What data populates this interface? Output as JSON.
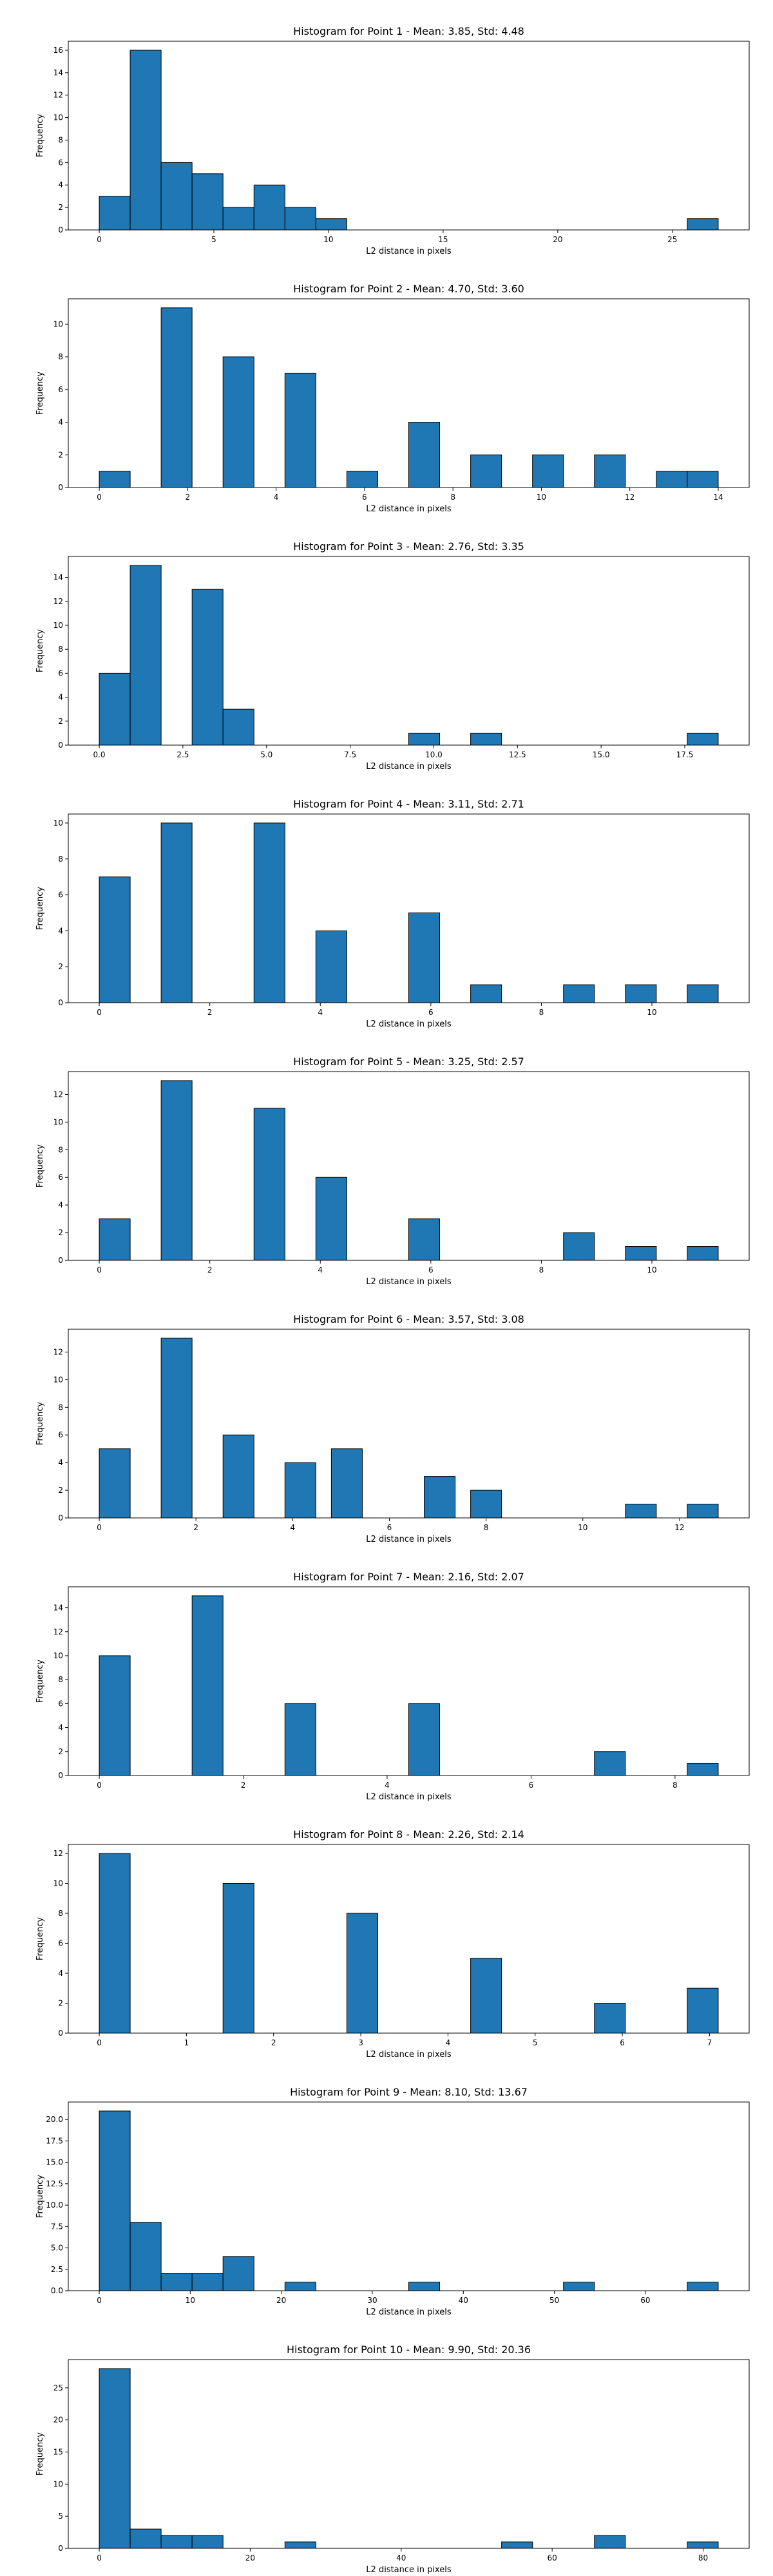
{
  "colors": {
    "bar_fill": "#1f77b4",
    "bar_edge": "#000000",
    "axes": "#000000",
    "background": "#ffffff"
  },
  "chart_data": [
    {
      "type": "bar",
      "title": "Histogram for Point 1 - Mean: 3.85, Std: 4.48",
      "xlabel": "L2 distance in pixels",
      "ylabel": "Frequency",
      "xlim": [
        -1.35,
        28.35
      ],
      "ylim": [
        0,
        16.8
      ],
      "xticks": [
        0,
        5,
        10,
        15,
        20,
        25
      ],
      "yticks": [
        0,
        2,
        4,
        6,
        8,
        10,
        12,
        14,
        16
      ],
      "grid": false,
      "bins": [
        {
          "x0": 0.0,
          "x1": 1.35,
          "value": 3
        },
        {
          "x0": 1.35,
          "x1": 2.7,
          "value": 16
        },
        {
          "x0": 2.7,
          "x1": 4.05,
          "value": 6
        },
        {
          "x0": 4.05,
          "x1": 5.4,
          "value": 5
        },
        {
          "x0": 5.4,
          "x1": 6.75,
          "value": 2
        },
        {
          "x0": 6.75,
          "x1": 8.1,
          "value": 4
        },
        {
          "x0": 8.1,
          "x1": 9.45,
          "value": 2
        },
        {
          "x0": 9.45,
          "x1": 10.8,
          "value": 1
        },
        {
          "x0": 25.65,
          "x1": 27.0,
          "value": 1
        }
      ]
    },
    {
      "type": "bar",
      "title": "Histogram for Point 2 - Mean: 4.70, Std: 3.60",
      "xlabel": "L2 distance in pixels",
      "ylabel": "Frequency",
      "xlim": [
        -0.7,
        14.7
      ],
      "ylim": [
        0,
        11.55
      ],
      "xticks": [
        0,
        2,
        4,
        6,
        8,
        10,
        12,
        14
      ],
      "yticks": [
        0,
        2,
        4,
        6,
        8,
        10
      ],
      "grid": false,
      "bins": [
        {
          "x0": 0.0,
          "x1": 0.7,
          "value": 1
        },
        {
          "x0": 1.4,
          "x1": 2.1,
          "value": 11
        },
        {
          "x0": 2.8,
          "x1": 3.5,
          "value": 8
        },
        {
          "x0": 4.2,
          "x1": 4.9,
          "value": 7
        },
        {
          "x0": 5.6,
          "x1": 6.3,
          "value": 1
        },
        {
          "x0": 7.0,
          "x1": 7.7,
          "value": 4
        },
        {
          "x0": 8.4,
          "x1": 9.1,
          "value": 2
        },
        {
          "x0": 9.8,
          "x1": 10.5,
          "value": 2
        },
        {
          "x0": 11.2,
          "x1": 11.9,
          "value": 2
        },
        {
          "x0": 12.6,
          "x1": 13.3,
          "value": 1
        },
        {
          "x0": 13.3,
          "x1": 14.0,
          "value": 1
        }
      ]
    },
    {
      "type": "bar",
      "title": "Histogram for Point 3 - Mean: 2.76, Std: 3.35",
      "xlabel": "L2 distance in pixels",
      "ylabel": "Frequency",
      "xlim": [
        -0.925,
        19.425
      ],
      "ylim": [
        0,
        15.75
      ],
      "xticks": [
        0.0,
        2.5,
        5.0,
        7.5,
        10.0,
        12.5,
        15.0,
        17.5
      ],
      "xtick_labels": [
        "0.0",
        "2.5",
        "5.0",
        "7.5",
        "10.0",
        "12.5",
        "15.0",
        "17.5"
      ],
      "yticks": [
        0,
        2,
        4,
        6,
        8,
        10,
        12,
        14
      ],
      "grid": false,
      "bins": [
        {
          "x0": 0.0,
          "x1": 0.925,
          "value": 6
        },
        {
          "x0": 0.925,
          "x1": 1.85,
          "value": 15
        },
        {
          "x0": 2.775,
          "x1": 3.7,
          "value": 13
        },
        {
          "x0": 3.7,
          "x1": 4.625,
          "value": 3
        },
        {
          "x0": 9.25,
          "x1": 10.175,
          "value": 1
        },
        {
          "x0": 11.1,
          "x1": 12.025,
          "value": 1
        },
        {
          "x0": 17.575,
          "x1": 18.5,
          "value": 1
        }
      ]
    },
    {
      "type": "bar",
      "title": "Histogram for Point 4 - Mean: 3.11, Std: 2.71",
      "xlabel": "L2 distance in pixels",
      "ylabel": "Frequency",
      "xlim": [
        -0.56,
        11.76
      ],
      "ylim": [
        0,
        10.5
      ],
      "xticks": [
        0,
        2,
        4,
        6,
        8,
        10
      ],
      "yticks": [
        0,
        2,
        4,
        6,
        8,
        10
      ],
      "grid": false,
      "bins": [
        {
          "x0": 0.0,
          "x1": 0.56,
          "value": 7
        },
        {
          "x0": 1.12,
          "x1": 1.68,
          "value": 10
        },
        {
          "x0": 2.8,
          "x1": 3.36,
          "value": 10
        },
        {
          "x0": 3.92,
          "x1": 4.48,
          "value": 4
        },
        {
          "x0": 5.6,
          "x1": 6.16,
          "value": 5
        },
        {
          "x0": 6.72,
          "x1": 7.28,
          "value": 1
        },
        {
          "x0": 8.4,
          "x1": 8.96,
          "value": 1
        },
        {
          "x0": 9.52,
          "x1": 10.08,
          "value": 1
        },
        {
          "x0": 10.64,
          "x1": 11.2,
          "value": 1
        }
      ]
    },
    {
      "type": "bar",
      "title": "Histogram for Point 5 - Mean: 3.25, Std: 2.57",
      "xlabel": "L2 distance in pixels",
      "ylabel": "Frequency",
      "xlim": [
        -0.56,
        11.76
      ],
      "ylim": [
        0,
        13.65
      ],
      "xticks": [
        0,
        2,
        4,
        6,
        8,
        10
      ],
      "yticks": [
        0,
        2,
        4,
        6,
        8,
        10,
        12
      ],
      "grid": false,
      "bins": [
        {
          "x0": 0.0,
          "x1": 0.56,
          "value": 3
        },
        {
          "x0": 1.12,
          "x1": 1.68,
          "value": 13
        },
        {
          "x0": 2.8,
          "x1": 3.36,
          "value": 11
        },
        {
          "x0": 3.92,
          "x1": 4.48,
          "value": 6
        },
        {
          "x0": 5.6,
          "x1": 6.16,
          "value": 3
        },
        {
          "x0": 8.4,
          "x1": 8.96,
          "value": 2
        },
        {
          "x0": 9.52,
          "x1": 10.08,
          "value": 1
        },
        {
          "x0": 10.64,
          "x1": 11.2,
          "value": 1
        }
      ]
    },
    {
      "type": "bar",
      "title": "Histogram for Point 6 - Mean: 3.57, Std: 3.08",
      "xlabel": "L2 distance in pixels",
      "ylabel": "Frequency",
      "xlim": [
        -0.64,
        13.44
      ],
      "ylim": [
        0,
        13.65
      ],
      "xticks": [
        0,
        2,
        4,
        6,
        8,
        10,
        12
      ],
      "yticks": [
        0,
        2,
        4,
        6,
        8,
        10,
        12
      ],
      "grid": false,
      "bins": [
        {
          "x0": 0.0,
          "x1": 0.64,
          "value": 5
        },
        {
          "x0": 1.28,
          "x1": 1.92,
          "value": 13
        },
        {
          "x0": 2.56,
          "x1": 3.2,
          "value": 6
        },
        {
          "x0": 3.84,
          "x1": 4.48,
          "value": 4
        },
        {
          "x0": 4.8,
          "x1": 5.44,
          "value": 5
        },
        {
          "x0": 6.72,
          "x1": 7.36,
          "value": 3
        },
        {
          "x0": 7.68,
          "x1": 8.32,
          "value": 2
        },
        {
          "x0": 10.88,
          "x1": 11.52,
          "value": 1
        },
        {
          "x0": 12.16,
          "x1": 12.8,
          "value": 1
        }
      ]
    },
    {
      "type": "bar",
      "title": "Histogram for Point 7 - Mean: 2.16, Std: 2.07",
      "xlabel": "L2 distance in pixels",
      "ylabel": "Frequency",
      "xlim": [
        -0.43,
        9.03
      ],
      "ylim": [
        0,
        15.75
      ],
      "xticks": [
        0,
        2,
        4,
        6,
        8
      ],
      "yticks": [
        0,
        2,
        4,
        6,
        8,
        10,
        12,
        14
      ],
      "grid": false,
      "bins": [
        {
          "x0": 0.0,
          "x1": 0.43,
          "value": 10
        },
        {
          "x0": 1.29,
          "x1": 1.72,
          "value": 15
        },
        {
          "x0": 2.58,
          "x1": 3.01,
          "value": 6
        },
        {
          "x0": 4.3,
          "x1": 4.73,
          "value": 6
        },
        {
          "x0": 6.88,
          "x1": 7.31,
          "value": 2
        },
        {
          "x0": 8.17,
          "x1": 8.6,
          "value": 1
        }
      ]
    },
    {
      "type": "bar",
      "title": "Histogram for Point 8 - Mean: 2.26, Std: 2.14",
      "xlabel": "L2 distance in pixels",
      "ylabel": "Frequency",
      "xlim": [
        -0.355,
        7.455
      ],
      "ylim": [
        0,
        12.6
      ],
      "xticks": [
        0,
        1,
        2,
        3,
        4,
        5,
        6,
        7
      ],
      "yticks": [
        0,
        2,
        4,
        6,
        8,
        10,
        12
      ],
      "grid": false,
      "bins": [
        {
          "x0": 0.0,
          "x1": 0.355,
          "value": 12
        },
        {
          "x0": 1.42,
          "x1": 1.775,
          "value": 10
        },
        {
          "x0": 2.84,
          "x1": 3.195,
          "value": 8
        },
        {
          "x0": 4.26,
          "x1": 4.615,
          "value": 5
        },
        {
          "x0": 5.68,
          "x1": 6.035,
          "value": 2
        },
        {
          "x0": 6.745,
          "x1": 7.1,
          "value": 3
        }
      ]
    },
    {
      "type": "bar",
      "title": "Histogram for Point 9 - Mean: 8.10, Std: 13.67",
      "xlabel": "L2 distance in pixels",
      "ylabel": "Frequency",
      "xlim": [
        -3.4,
        71.4
      ],
      "ylim": [
        0,
        22.05
      ],
      "xticks": [
        0,
        10,
        20,
        30,
        40,
        50,
        60
      ],
      "yticks": [
        0.0,
        2.5,
        5.0,
        7.5,
        10.0,
        12.5,
        15.0,
        17.5,
        20.0
      ],
      "ytick_labels": [
        "0.0",
        "2.5",
        "5.0",
        "7.5",
        "10.0",
        "12.5",
        "15.0",
        "17.5",
        "20.0"
      ],
      "grid": false,
      "bins": [
        {
          "x0": 0.0,
          "x1": 3.4,
          "value": 21
        },
        {
          "x0": 3.4,
          "x1": 6.8,
          "value": 8
        },
        {
          "x0": 6.8,
          "x1": 10.2,
          "value": 2
        },
        {
          "x0": 10.2,
          "x1": 13.6,
          "value": 2
        },
        {
          "x0": 13.6,
          "x1": 17.0,
          "value": 4
        },
        {
          "x0": 20.4,
          "x1": 23.8,
          "value": 1
        },
        {
          "x0": 34.0,
          "x1": 37.4,
          "value": 1
        },
        {
          "x0": 51.0,
          "x1": 54.4,
          "value": 1
        },
        {
          "x0": 64.6,
          "x1": 68.0,
          "value": 1
        }
      ]
    },
    {
      "type": "bar",
      "title": "Histogram for Point 10 - Mean: 9.90, Std: 20.36",
      "xlabel": "L2 distance in pixels",
      "ylabel": "Frequency",
      "xlim": [
        -4.1,
        86.1
      ],
      "ylim": [
        0,
        29.4
      ],
      "xticks": [
        0,
        20,
        40,
        60,
        80
      ],
      "yticks": [
        0,
        5,
        10,
        15,
        20,
        25
      ],
      "grid": false,
      "bins": [
        {
          "x0": 0.0,
          "x1": 4.1,
          "value": 28
        },
        {
          "x0": 4.1,
          "x1": 8.2,
          "value": 3
        },
        {
          "x0": 8.2,
          "x1": 12.3,
          "value": 2
        },
        {
          "x0": 12.3,
          "x1": 16.4,
          "value": 2
        },
        {
          "x0": 24.6,
          "x1": 28.7,
          "value": 1
        },
        {
          "x0": 53.3,
          "x1": 57.4,
          "value": 1
        },
        {
          "x0": 65.6,
          "x1": 69.7,
          "value": 2
        },
        {
          "x0": 77.9,
          "x1": 82.0,
          "value": 1
        }
      ]
    }
  ]
}
